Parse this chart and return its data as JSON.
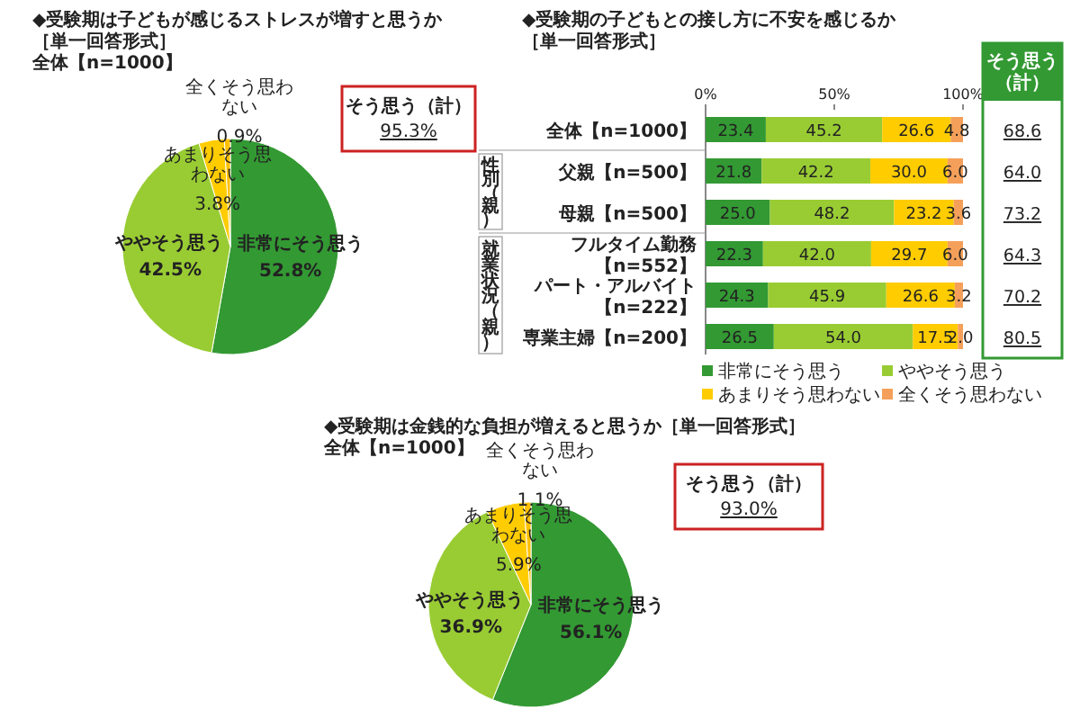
{
  "chart_data": [
    {
      "type": "pie",
      "title": "◆受験期は子どもが感じるストレスが増すと思うか［単一回答形式］",
      "subtitle": "全体【n=1000】",
      "categories": [
        "非常にそう思う",
        "ややそう思う",
        "あまりそう思わない",
        "全くそう思わない"
      ],
      "values": [
        52.8,
        42.5,
        3.8,
        0.9
      ],
      "value_labels": [
        "52.8%",
        "42.5%",
        "3.8%",
        "0.9%"
      ],
      "colors": [
        "#339933",
        "#99cc33",
        "#ffcc00",
        "#ffc000"
      ],
      "annotations": [
        "そう思う（計）",
        "95.3%"
      ]
    },
    {
      "type": "bar",
      "orientation": "horizontal",
      "stacked": true,
      "title": "◆受験期の子どもとの接し方に不安を感じるか［単一回答形式］",
      "categories": [
        "全体【n=1000】",
        "父親【n=500】",
        "母親【n=500】",
        "フルタイム勤務【n=552】",
        "パート・アルバイト【n=222】",
        "専業主婦【n=200】"
      ],
      "series": [
        {
          "name": "非常にそう思う",
          "color": "#339933",
          "values": [
            23.4,
            21.8,
            25.0,
            22.3,
            24.3,
            26.5
          ],
          "value_labels": [
            "23.4",
            "21.8",
            "25.0",
            "22.3",
            "24.3",
            "26.5"
          ]
        },
        {
          "name": "ややそう思う",
          "color": "#99cc33",
          "values": [
            45.2,
            42.2,
            48.2,
            42.0,
            45.9,
            54.0
          ],
          "value_labels": [
            "45.2",
            "42.2",
            "48.2",
            "42.0",
            "45.9",
            "54.0"
          ]
        },
        {
          "name": "あまりそう思わない",
          "color": "#ffcc00",
          "values": [
            26.6,
            30.0,
            23.2,
            29.7,
            26.6,
            17.5
          ],
          "value_labels": [
            "26.6",
            "30.0",
            "23.2",
            "29.7",
            "26.6",
            "17.5"
          ]
        },
        {
          "name": "全くそう思わない",
          "color": "#f5a05a",
          "values": [
            4.8,
            6.0,
            3.6,
            6.0,
            3.2,
            2.0
          ],
          "value_labels": [
            "4.8",
            "6.0",
            "3.6",
            "6.0",
            "3.2",
            "2.0"
          ]
        }
      ],
      "xlim": [
        0,
        100
      ],
      "xticks": [
        {
          "value": 0,
          "label": "0%"
        },
        {
          "value": 50,
          "label": "50%"
        },
        {
          "value": 100,
          "label": "100%"
        }
      ],
      "legend": "bottom",
      "annotations": [
        "性別（親）",
        "就業状況（親）",
        "そう思う（計）",
        "68.6",
        "64.0",
        "73.2",
        "64.3",
        "70.2",
        "80.5"
      ]
    },
    {
      "type": "pie",
      "title": "◆受験期は金銭的な負担が増えると思うか［単一回答形式］",
      "subtitle": "全体【n=1000】",
      "categories": [
        "非常にそう思う",
        "ややそう思う",
        "あまりそう思わない",
        "全くそう思わない"
      ],
      "values": [
        56.1,
        36.9,
        5.9,
        1.1
      ],
      "value_labels": [
        "56.1%",
        "36.9%",
        "5.9%",
        "1.1%"
      ],
      "colors": [
        "#339933",
        "#99cc33",
        "#ffcc00",
        "#ffc000"
      ],
      "annotations": [
        "そう思う（計）",
        "93.0%"
      ]
    }
  ]
}
